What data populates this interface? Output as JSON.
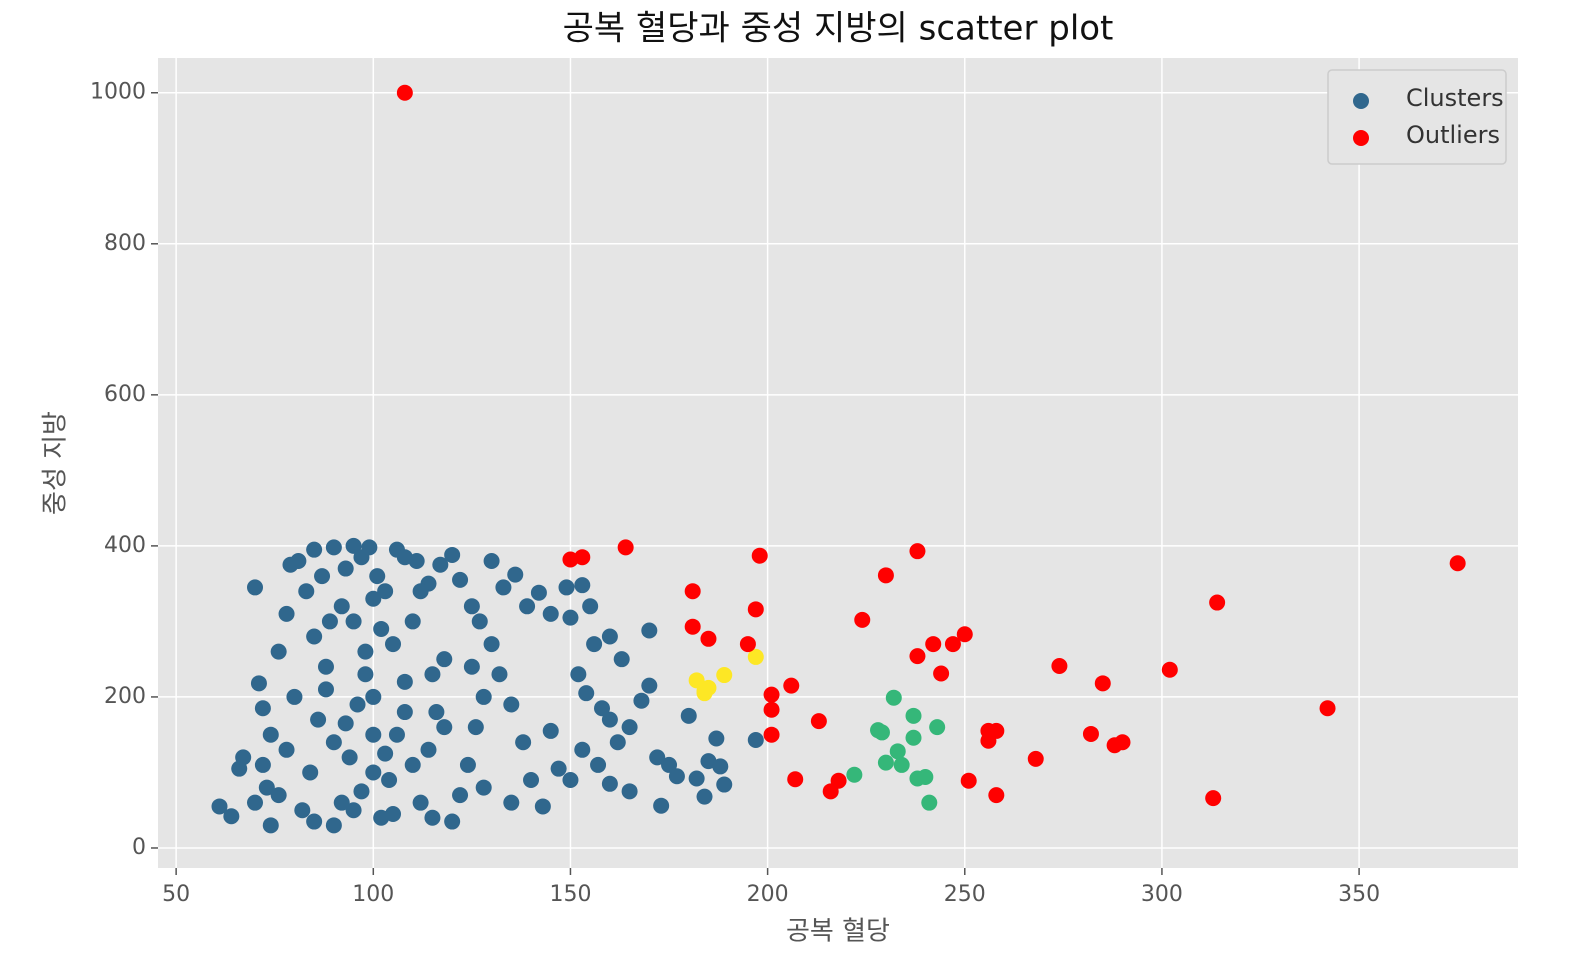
{
  "chart_data": {
    "type": "scatter",
    "title": "공복 혈당과 중성 지방의 scatter plot",
    "xlabel": "공복 혈당",
    "ylabel": "중성 지방",
    "xlim": [
      45.4,
      390.3
    ],
    "ylim": [
      -26.5,
      1046
    ],
    "xticks": [
      50,
      100,
      150,
      200,
      250,
      300,
      350
    ],
    "yticks": [
      0,
      200,
      400,
      600,
      800,
      1000
    ],
    "grid": true,
    "legend": "upper right",
    "series": [
      {
        "name": "Clusters",
        "color": "#30678d",
        "x": [
          61,
          64,
          66,
          67,
          70,
          71,
          72,
          74,
          73,
          76,
          78,
          79,
          81,
          83,
          85,
          87,
          89,
          90,
          93,
          95,
          97,
          99,
          101,
          103,
          106,
          108,
          111,
          114,
          117,
          120,
          122,
          125,
          127,
          130,
          133,
          136,
          139,
          142,
          145,
          149,
          150,
          153,
          155,
          156,
          160,
          163,
          170,
          152,
          154,
          158,
          160,
          162,
          165,
          168,
          170,
          172,
          175,
          177,
          180,
          182,
          184,
          185,
          187,
          188,
          189,
          197,
          173,
          165,
          160,
          157,
          153,
          150,
          147,
          145,
          143,
          140,
          138,
          135,
          132,
          130,
          128,
          126,
          124,
          122,
          120,
          118,
          116,
          114,
          112,
          110,
          108,
          106,
          104,
          102,
          100,
          98,
          96,
          94,
          92,
          90,
          88,
          86,
          84,
          82,
          80,
          78,
          76,
          74,
          72,
          70,
          85,
          95,
          105,
          115,
          125,
          100,
          100,
          100,
          90,
          110,
          95,
          105,
          115,
          85,
          135,
          128,
          118,
          108,
          98,
          88,
          92,
          102,
          112,
          97,
          93,
          103
        ],
        "y": [
          55,
          42,
          105,
          120,
          345,
          218,
          185,
          150,
          80,
          260,
          310,
          375,
          380,
          340,
          395,
          360,
          300,
          398,
          370,
          400,
          385,
          398,
          360,
          340,
          395,
          385,
          380,
          350,
          375,
          388,
          355,
          320,
          300,
          380,
          345,
          362,
          320,
          338,
          310,
          345,
          305,
          348,
          320,
          270,
          280,
          250,
          288,
          230,
          205,
          185,
          170,
          140,
          160,
          195,
          215,
          120,
          110,
          95,
          175,
          92,
          68,
          115,
          145,
          108,
          84,
          143,
          56,
          75,
          85,
          110,
          130,
          90,
          105,
          155,
          55,
          90,
          140,
          190,
          230,
          270,
          200,
          160,
          110,
          70,
          35,
          250,
          180,
          130,
          60,
          300,
          220,
          150,
          90,
          40,
          330,
          260,
          190,
          120,
          60,
          30,
          240,
          170,
          100,
          50,
          200,
          130,
          70,
          30,
          110,
          60,
          280,
          300,
          270,
          230,
          240,
          200,
          150,
          100,
          140,
          110,
          50,
          45,
          40,
          35,
          60,
          80,
          160,
          180,
          230,
          210,
          320,
          290,
          340,
          75,
          165,
          125
        ]
      },
      {
        "color": "#fde725",
        "x": [
          182,
          184,
          185,
          189,
          197,
          184
        ],
        "y": [
          222,
          205,
          212,
          229,
          253,
          208
        ]
      },
      {
        "color": "#35b779",
        "x": [
          222,
          228,
          229,
          230,
          232,
          233,
          234,
          237,
          237,
          238,
          240,
          241,
          243
        ],
        "y": [
          97,
          156,
          153,
          113,
          199,
          128,
          110,
          175,
          146,
          92,
          94,
          60,
          160
        ]
      },
      {
        "name": "Outliers",
        "color": "#ff0000",
        "x": [
          108,
          150,
          153,
          164,
          181,
          181,
          185,
          195,
          197,
          198,
          201,
          201,
          201,
          206,
          207,
          213,
          216,
          218,
          224,
          230,
          238,
          238,
          242,
          244,
          247,
          250,
          251,
          256,
          256,
          258,
          258,
          268,
          274,
          282,
          285,
          288,
          290,
          302,
          313,
          314,
          342,
          375
        ],
        "y": [
          1000,
          382,
          385,
          398,
          340,
          293,
          277,
          270,
          316,
          387,
          203,
          183,
          150,
          215,
          91,
          168,
          75,
          89,
          302,
          361,
          393,
          254,
          270,
          231,
          270,
          283,
          89,
          155,
          142,
          155,
          70,
          118,
          241,
          151,
          218,
          136,
          140,
          236,
          66,
          325,
          185,
          377
        ]
      }
    ]
  }
}
